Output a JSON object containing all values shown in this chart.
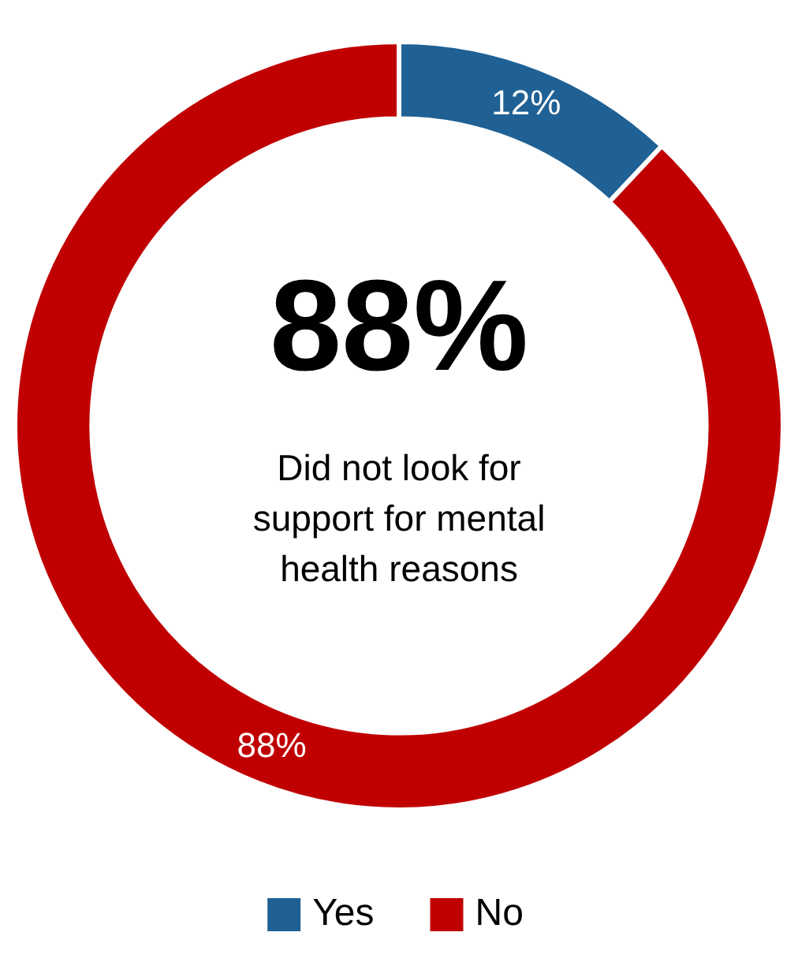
{
  "chart_data": {
    "type": "donut",
    "categories": [
      "Yes",
      "No"
    ],
    "values": [
      12,
      88
    ],
    "colors": [
      "#1f6195",
      "#c00000"
    ],
    "data_labels": true,
    "value_labels": [
      "12%",
      "88%"
    ],
    "legend": "bottom",
    "annotations": [
      "88%",
      "Did not look for support for mental health reasons"
    ]
  }
}
